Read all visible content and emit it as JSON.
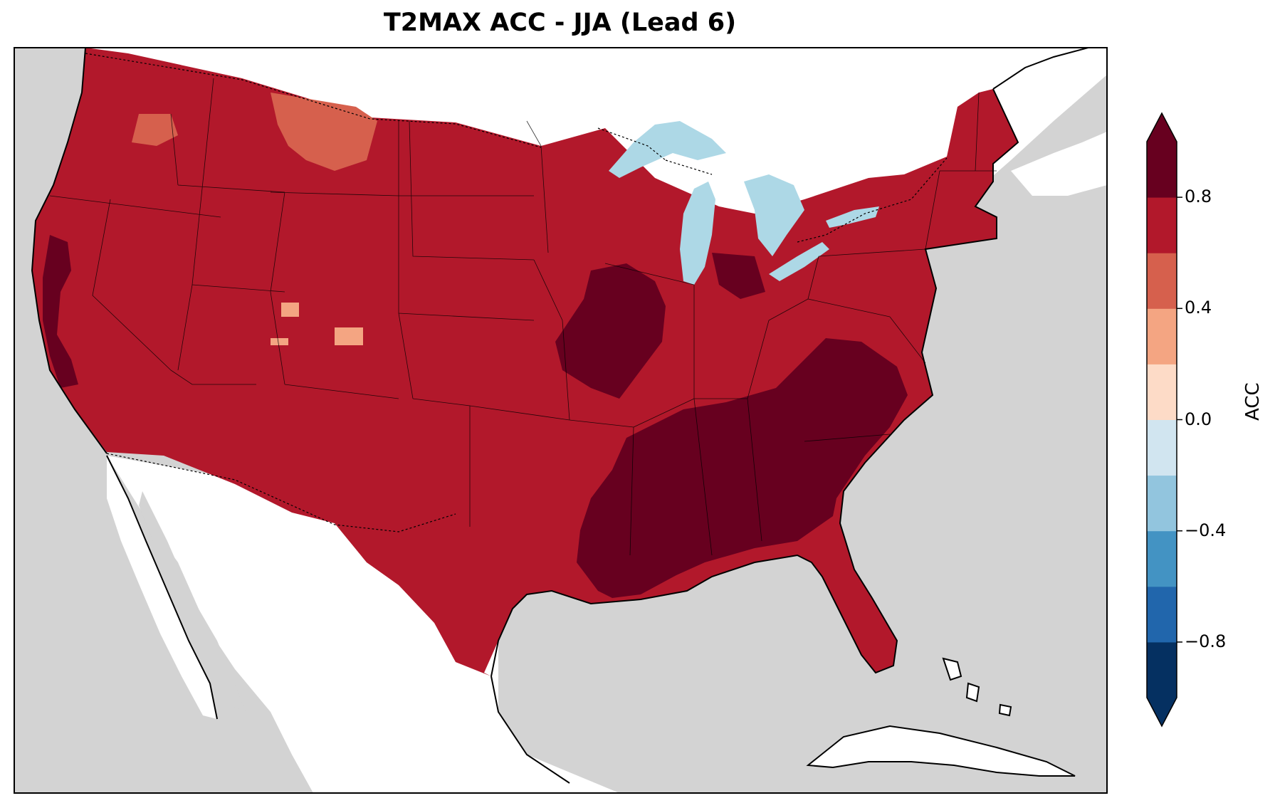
{
  "title": "T2MAX ACC - JJA (Lead 6)",
  "map": {
    "ocean_color": "#d3d3d3",
    "land_outside_color": "#ffffff",
    "lake_color": "#add8e6",
    "dominant_value_color": "#b2182b"
  },
  "colorbar": {
    "label": "ACC",
    "range": [
      -1.0,
      1.0
    ],
    "extend": "both",
    "levels": [
      -1.0,
      -0.8,
      -0.6,
      -0.4,
      -0.2,
      0.0,
      0.2,
      0.4,
      0.6,
      0.8,
      1.0
    ],
    "colors": [
      "#053061",
      "#2166ac",
      "#4393c3",
      "#92c5de",
      "#d1e5f0",
      "#fddbc7",
      "#f4a582",
      "#d6604d",
      "#b2182b",
      "#67001f"
    ],
    "under_color": "#053061",
    "over_color": "#67001f",
    "ticks": [
      {
        "value": 0.8,
        "label": "0.8"
      },
      {
        "value": 0.4,
        "label": "0.4"
      },
      {
        "value": 0.0,
        "label": "0.0"
      },
      {
        "value": -0.4,
        "label": "−0.4"
      },
      {
        "value": -0.8,
        "label": "−0.8"
      }
    ]
  },
  "regions": [
    {
      "name": "conus-body",
      "acc_range": "0.6-0.8",
      "color": "#b2182b"
    },
    {
      "name": "southeast-gulf",
      "acc_range": ">0.8",
      "color": "#67001f"
    },
    {
      "name": "upper-mississippi",
      "acc_range": ">0.8",
      "color": "#67001f"
    },
    {
      "name": "northern-rockies",
      "acc_range": "0.4-0.6",
      "color": "#d6604d"
    },
    {
      "name": "pacific-northwest",
      "acc_range": "0.4-0.6",
      "color": "#d6604d"
    },
    {
      "name": "colorado-patches",
      "acc_range": "0.2-0.4",
      "color": "#f4a582"
    },
    {
      "name": "california-coast",
      "acc_range": ">0.8",
      "color": "#67001f"
    }
  ]
}
